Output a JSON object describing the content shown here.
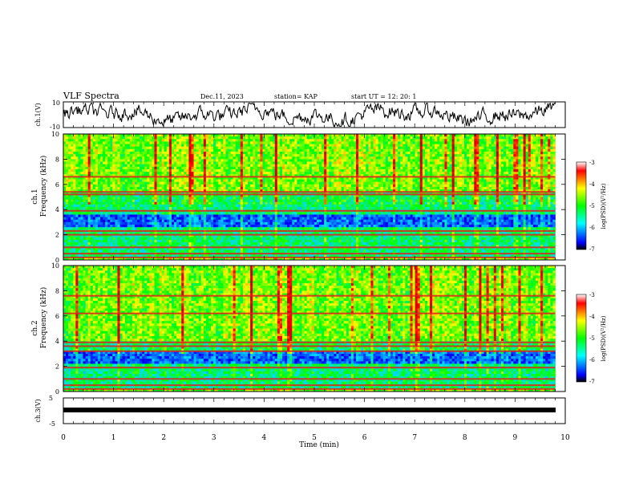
{
  "header": {
    "title": "VLF Spectra",
    "date": "Dec.11, 2023",
    "station": "station= KAP",
    "start": "start  UT =   12: 20: 1"
  },
  "colorbar": {
    "label": "log(PSD)(V²/Hz)",
    "ticks": [
      "-3",
      "-4",
      "-5",
      "-6",
      "-7"
    ],
    "colors": [
      "#000000",
      "#0000ff",
      "#00ffff",
      "#00ff00",
      "#ffff00",
      "#ff0000",
      "#ffffff"
    ]
  },
  "panels": {
    "ch1_label": "ch.1(V)",
    "ch1_ticks": [
      "10",
      "-10"
    ],
    "spec1_label_a": "ch.1",
    "spec1_label_b": "Frequency (kHz)",
    "spec2_label_a": "ch.2",
    "spec2_label_b": "Frequency (kHz)",
    "freq_ticks": [
      "0",
      "2",
      "4",
      "6",
      "8",
      "10"
    ],
    "ch3_label": "ch.3(V)",
    "ch3_ticks": [
      "5",
      "-5"
    ]
  },
  "chart_data": [
    {
      "type": "line",
      "ylabel": "ch.1(V)",
      "xlim": [
        0,
        10
      ],
      "ylim": [
        -10,
        10
      ],
      "note_values": "noisy waveform fluctuating roughly between -6 and +8 V over 0–9.8 min"
    },
    {
      "type": "heatmap",
      "title": "ch.1",
      "ylabel": "Frequency (kHz)",
      "xlim": [
        0,
        10
      ],
      "ylim": [
        0,
        10
      ],
      "data_extent_min": 9.8,
      "colorscale_range": [
        -7,
        -3
      ],
      "horizontal_lines_khz": [
        0.2,
        0.5,
        1.0,
        2.0,
        2.3,
        3.9,
        5.2,
        5.4,
        6.6
      ],
      "low_power_band_khz": [
        2.6,
        3.5
      ],
      "high_power_region_khz": [
        5.5,
        10
      ]
    },
    {
      "type": "heatmap",
      "title": "ch.2",
      "ylabel": "Frequency (kHz)",
      "xlim": [
        0,
        10
      ],
      "ylim": [
        0,
        10
      ],
      "data_extent_min": 9.8,
      "colorscale_range": [
        -7,
        -3
      ],
      "horizontal_lines_khz": [
        0.2,
        0.5,
        1.0,
        1.9,
        3.2,
        3.6,
        3.9,
        6.2,
        7.6
      ],
      "low_power_band_khz": [
        2.2,
        3.1
      ],
      "high_power_region_khz": [
        4.0,
        10
      ]
    },
    {
      "type": "line",
      "ylabel": "ch.3(V)",
      "xlim": [
        0,
        10
      ],
      "ylim": [
        -5,
        5
      ],
      "note_values": "flat signal near 0 V with small thickness"
    }
  ],
  "xaxis": {
    "label": "Time (min)",
    "ticks": [
      "0",
      "1",
      "2",
      "3",
      "4",
      "5",
      "6",
      "7",
      "8",
      "9",
      "10"
    ]
  }
}
